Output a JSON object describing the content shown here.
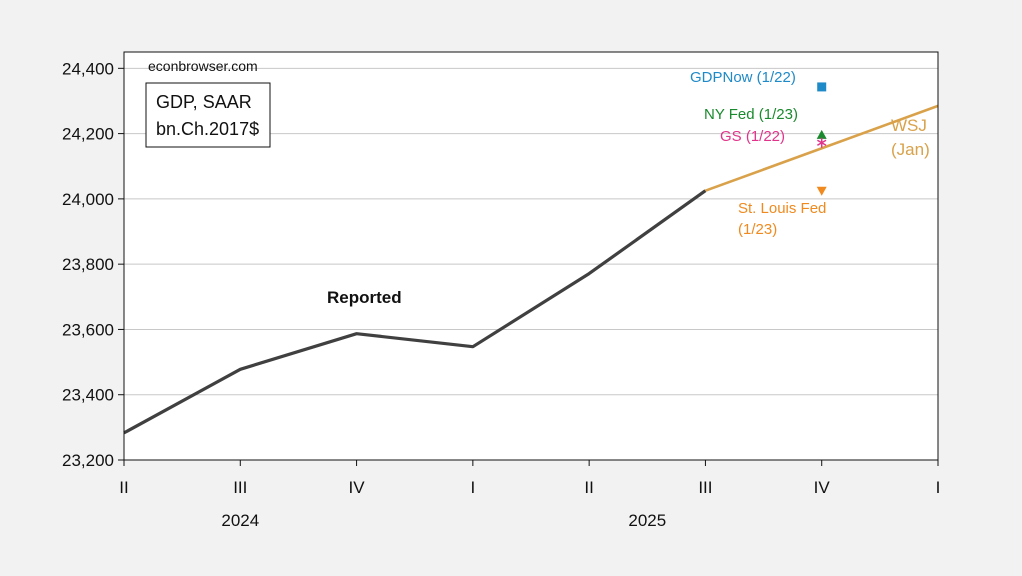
{
  "chart_data": {
    "type": "line",
    "source_label": "econbrowser.com",
    "box_label": [
      "GDP, SAAR",
      "bn.Ch.2017$"
    ],
    "x_ticks": [
      "II",
      "III",
      "IV",
      "I",
      "II",
      "III",
      "IV",
      "I"
    ],
    "x_years": [
      {
        "label": "2024",
        "start": 0,
        "end": 2
      },
      {
        "label": "2025",
        "start": 3,
        "end": 6
      }
    ],
    "y_ticks": [
      {
        "value": 23200,
        "label": "23,200"
      },
      {
        "value": 23400,
        "label": "23,400"
      },
      {
        "value": 23600,
        "label": "23,600"
      },
      {
        "value": 23800,
        "label": "23,800"
      },
      {
        "value": 24000,
        "label": "24,000"
      },
      {
        "value": 24200,
        "label": "24,200"
      },
      {
        "value": 24400,
        "label": "24,400"
      }
    ],
    "ylim": [
      23200,
      24450
    ],
    "grid": true,
    "series": [
      {
        "name": "Reported",
        "color": "#404040",
        "points": [
          {
            "x": "2024Q2",
            "y": 23283
          },
          {
            "x": "2024Q3",
            "y": 23478
          },
          {
            "x": "2024Q4",
            "y": 23587
          },
          {
            "x": "2025Q1",
            "y": 23547
          },
          {
            "x": "2025Q2",
            "y": 23771
          },
          {
            "x": "2025Q3",
            "y": 24025
          }
        ]
      },
      {
        "name": "WSJ (Jan)",
        "label_lines": [
          "WSJ",
          "(Jan)"
        ],
        "color": "#d9a24a",
        "points": [
          {
            "x": "2025Q3",
            "y": 24025
          },
          {
            "x": "2026Q1",
            "y": 24285
          }
        ]
      }
    ],
    "nowcasts": [
      {
        "name": "GDPNow (1/22)",
        "x": "2025Q4",
        "y": 24343,
        "marker": "square",
        "color": "#1f8ac8"
      },
      {
        "name": "NY Fed (1/23)",
        "x": "2025Q4",
        "y": 24193,
        "marker": "triangle-up",
        "color": "#1a8a2e"
      },
      {
        "name": "GS (1/22)",
        "x": "2025Q4",
        "y": 24172,
        "marker": "star",
        "color": "#e2338a"
      },
      {
        "name": "St. Louis Fed (1/23)",
        "label_lines": [
          "St. Louis Fed",
          "(1/23)"
        ],
        "x": "2025Q4",
        "y": 24025,
        "marker": "triangle-down",
        "color": "#f08a1e"
      }
    ]
  }
}
